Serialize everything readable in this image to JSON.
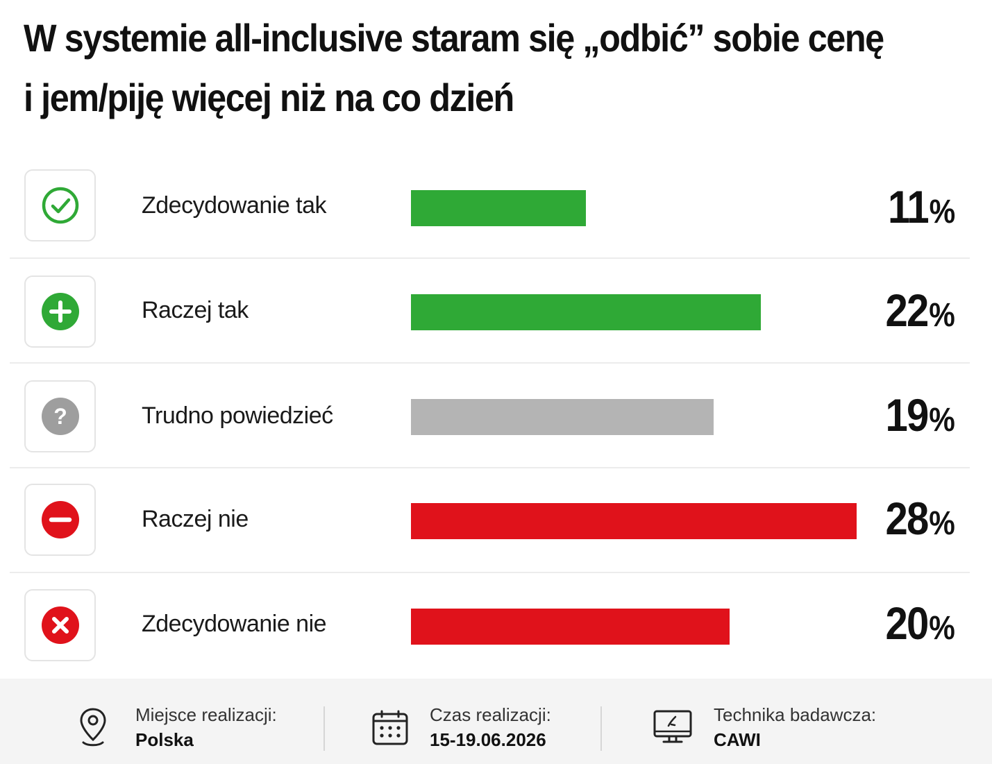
{
  "title": "W systemie all-inclusive staram się „odbić” sobie cenę i jem/piję więcej niż na co dzień",
  "chart_data": {
    "type": "bar",
    "orientation": "horizontal",
    "title": "W systemie all-inclusive staram się „odbić” sobie cenę i jem/piję więcej niż na co dzień",
    "categories": [
      "Zdecydowanie tak",
      "Raczej tak",
      "Trudno powiedzieć",
      "Raczej nie",
      "Zdecydowanie nie"
    ],
    "values": [
      11,
      22,
      19,
      28,
      20
    ],
    "unit": "%",
    "colors": [
      "#2fa936",
      "#2fa936",
      "#b4b4b4",
      "#e0121b",
      "#e0121b"
    ],
    "icons": [
      "check-circle-icon",
      "plus-circle-icon",
      "question-circle-icon",
      "minus-circle-icon",
      "x-circle-icon"
    ],
    "xlim": [
      0,
      28
    ],
    "grid": false,
    "legend": "none"
  },
  "footer": {
    "items": [
      {
        "label": "Miejsce realizacji:",
        "value": "Polska",
        "icon": "location-pin-icon"
      },
      {
        "label": "Czas realizacji:",
        "value": "15-19.06.2026",
        "icon": "calendar-icon"
      },
      {
        "label": "Technika badawcza:",
        "value": "CAWI",
        "icon": "computer-icon"
      }
    ]
  }
}
